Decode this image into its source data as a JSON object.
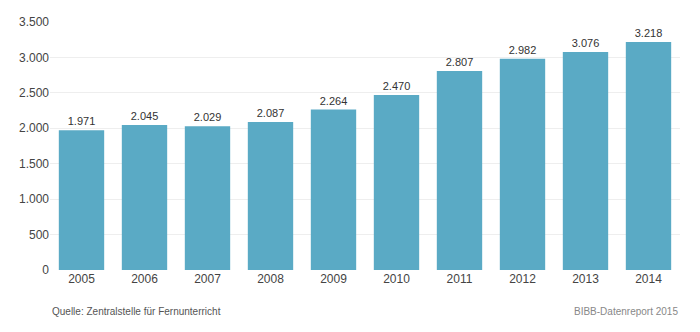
{
  "chart_data": {
    "type": "bar",
    "categories": [
      "2005",
      "2006",
      "2007",
      "2008",
      "2009",
      "2010",
      "2011",
      "2012",
      "2013",
      "2014"
    ],
    "values": [
      1971,
      2045,
      2029,
      2087,
      2264,
      2470,
      2807,
      2982,
      3076,
      3218
    ],
    "value_labels": [
      "1.971",
      "2.045",
      "2.029",
      "2.087",
      "2.264",
      "2.470",
      "2.807",
      "2.982",
      "3.076",
      "3.218"
    ],
    "data_labels": true,
    "color": "#5aaac5",
    "ylim": [
      0,
      3500
    ],
    "yticks": [
      0,
      500,
      {
        "value": 1000,
        "label": "1.000"
      },
      {
        "value": 1500,
        "label": "1.500"
      },
      {
        "value": 2000,
        "label": "2.000"
      },
      {
        "value": 2500,
        "label": "2.500"
      },
      {
        "value": 3000,
        "label": "3.000"
      },
      {
        "value": 3500,
        "label": "3.500"
      }
    ],
    "grid": true,
    "annotations": [
      "Quelle: Zentralstelle für Fernunterricht",
      "BIBB-Datenreport 2015"
    ]
  }
}
